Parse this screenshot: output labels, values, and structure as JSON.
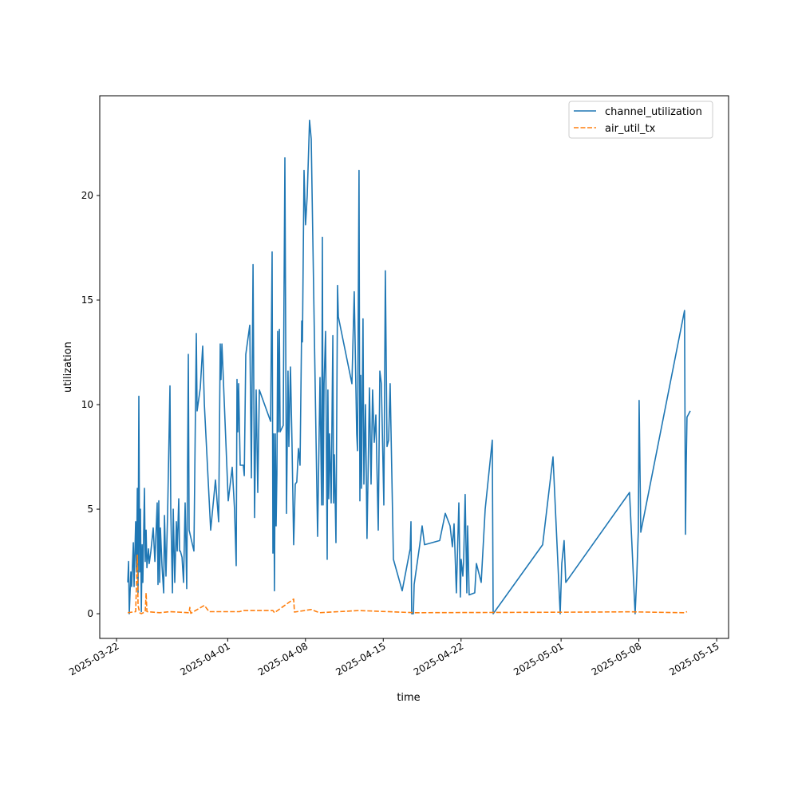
{
  "chart_data": {
    "type": "line",
    "title": "",
    "xlabel": "time",
    "ylabel": "utilization",
    "x_unit": "days since 2025-03-22",
    "xlim": [
      -1.51,
      55.07
    ],
    "ylim": [
      -1.18,
      24.77
    ],
    "grid": false,
    "legend_position": "top-right",
    "x_ticks": [
      {
        "day": 0,
        "label": "2025-03-22"
      },
      {
        "day": 10,
        "label": "2025-04-01"
      },
      {
        "day": 17,
        "label": "2025-04-08"
      },
      {
        "day": 24,
        "label": "2025-04-15"
      },
      {
        "day": 31,
        "label": "2025-04-22"
      },
      {
        "day": 40,
        "label": "2025-05-01"
      },
      {
        "day": 47,
        "label": "2025-05-08"
      },
      {
        "day": 54,
        "label": "2025-05-15"
      }
    ],
    "y_ticks": [
      {
        "value": 0,
        "label": "0"
      },
      {
        "value": 5,
        "label": "5"
      },
      {
        "value": 10,
        "label": "10"
      },
      {
        "value": 15,
        "label": "15"
      },
      {
        "value": 20,
        "label": "20"
      }
    ],
    "series": [
      {
        "name": "channel_utilization",
        "color": "#1f77b4",
        "style": "solid",
        "points": [
          [
            1.01,
            1.5
          ],
          [
            1.08,
            2.5
          ],
          [
            1.15,
            0
          ],
          [
            1.29,
            2
          ],
          [
            1.36,
            1.3
          ],
          [
            1.51,
            3.4
          ],
          [
            1.58,
            1.3
          ],
          [
            1.72,
            4.4
          ],
          [
            1.79,
            2
          ],
          [
            1.87,
            6
          ],
          [
            1.94,
            1
          ],
          [
            2.01,
            10.4
          ],
          [
            2.08,
            2
          ],
          [
            2.15,
            5
          ],
          [
            2.23,
            0.1
          ],
          [
            2.3,
            3.3
          ],
          [
            2.37,
            1.5
          ],
          [
            2.51,
            6
          ],
          [
            2.58,
            2.5
          ],
          [
            2.66,
            4
          ],
          [
            2.73,
            2.2
          ],
          [
            2.87,
            3.1
          ],
          [
            2.94,
            2.4
          ],
          [
            3.09,
            3
          ],
          [
            3.3,
            4.1
          ],
          [
            3.45,
            2.5
          ],
          [
            3.66,
            5.3
          ],
          [
            3.73,
            1.4
          ],
          [
            3.8,
            5.4
          ],
          [
            3.88,
            1.5
          ],
          [
            3.95,
            4.1
          ],
          [
            4.09,
            2.3
          ],
          [
            4.24,
            1
          ],
          [
            4.31,
            4.7
          ],
          [
            4.45,
            1.8
          ],
          [
            4.59,
            4.7
          ],
          [
            4.81,
            10.9
          ],
          [
            4.88,
            5
          ],
          [
            5.03,
            1
          ],
          [
            5.1,
            5
          ],
          [
            5.24,
            1.5
          ],
          [
            5.38,
            4.4
          ],
          [
            5.46,
            3
          ],
          [
            5.6,
            5.5
          ],
          [
            5.67,
            3
          ],
          [
            5.74,
            3
          ],
          [
            5.89,
            2.7
          ],
          [
            6.03,
            1.5
          ],
          [
            6.17,
            5.3
          ],
          [
            6.32,
            1.2
          ],
          [
            6.46,
            12.4
          ],
          [
            6.53,
            4
          ],
          [
            6.75,
            3.5
          ],
          [
            6.96,
            3
          ],
          [
            7.18,
            13.4
          ],
          [
            7.25,
            9.7
          ],
          [
            7.54,
            10.8
          ],
          [
            7.75,
            12.8
          ],
          [
            7.9,
            10
          ],
          [
            8.47,
            4
          ],
          [
            8.9,
            6.4
          ],
          [
            9.19,
            4.4
          ],
          [
            9.33,
            12.9
          ],
          [
            9.4,
            11.2
          ],
          [
            9.48,
            12.9
          ],
          [
            10.05,
            5.4
          ],
          [
            10.41,
            7
          ],
          [
            10.62,
            5
          ],
          [
            10.77,
            2.3
          ],
          [
            10.84,
            11.2
          ],
          [
            10.91,
            8.7
          ],
          [
            10.98,
            11
          ],
          [
            11.13,
            7.1
          ],
          [
            11.41,
            7.1
          ],
          [
            11.49,
            6.6
          ],
          [
            11.63,
            12.4
          ],
          [
            11.99,
            13.8
          ],
          [
            12.13,
            6.5
          ],
          [
            12.28,
            16.7
          ],
          [
            12.42,
            4.6
          ],
          [
            12.56,
            10.7
          ],
          [
            12.71,
            5.8
          ],
          [
            12.85,
            10.7
          ],
          [
            13.86,
            9.2
          ],
          [
            14.0,
            17.3
          ],
          [
            14.07,
            2.9
          ],
          [
            14.14,
            8.6
          ],
          [
            14.21,
            1.1
          ],
          [
            14.29,
            8.6
          ],
          [
            14.36,
            4.2
          ],
          [
            14.43,
            6.7
          ],
          [
            14.5,
            13.5
          ],
          [
            14.57,
            8.7
          ],
          [
            14.65,
            13.6
          ],
          [
            14.72,
            8.7
          ],
          [
            15.0,
            9
          ],
          [
            15.15,
            21.8
          ],
          [
            15.29,
            4.8
          ],
          [
            15.43,
            11.6
          ],
          [
            15.51,
            8
          ],
          [
            15.65,
            11.8
          ],
          [
            15.79,
            8.2
          ],
          [
            15.94,
            3.3
          ],
          [
            16.08,
            6.2
          ],
          [
            16.22,
            6.3
          ],
          [
            16.37,
            7.9
          ],
          [
            16.51,
            7.1
          ],
          [
            16.66,
            14
          ],
          [
            16.73,
            13
          ],
          [
            16.87,
            21.2
          ],
          [
            17.01,
            18.6
          ],
          [
            17.16,
            20
          ],
          [
            17.37,
            23.6
          ],
          [
            17.52,
            22.7
          ],
          [
            18.09,
            3.7
          ],
          [
            18.31,
            11.3
          ],
          [
            18.45,
            5.2
          ],
          [
            18.52,
            18
          ],
          [
            18.59,
            5.2
          ],
          [
            18.67,
            11
          ],
          [
            18.81,
            13.5
          ],
          [
            18.95,
            2.6
          ],
          [
            19.02,
            10.7
          ],
          [
            19.1,
            5.5
          ],
          [
            19.17,
            8.6
          ],
          [
            19.31,
            5.3
          ],
          [
            19.38,
            8.8
          ],
          [
            19.46,
            13.3
          ],
          [
            19.53,
            5.3
          ],
          [
            19.6,
            7.6
          ],
          [
            19.74,
            3.4
          ],
          [
            19.89,
            15.7
          ],
          [
            19.96,
            14.2
          ],
          [
            21.18,
            11
          ],
          [
            21.39,
            15.4
          ],
          [
            21.61,
            8.6
          ],
          [
            21.68,
            7.8
          ],
          [
            21.82,
            21.2
          ],
          [
            21.9,
            5.4
          ],
          [
            21.97,
            11.4
          ],
          [
            22.04,
            6
          ],
          [
            22.18,
            14.1
          ],
          [
            22.26,
            6.2
          ],
          [
            22.4,
            10
          ],
          [
            22.54,
            3.6
          ],
          [
            22.76,
            10.8
          ],
          [
            22.9,
            6.2
          ],
          [
            23.04,
            10.7
          ],
          [
            23.19,
            8.2
          ],
          [
            23.33,
            9.5
          ],
          [
            23.55,
            4
          ],
          [
            23.69,
            11.6
          ],
          [
            23.83,
            11
          ],
          [
            24.05,
            5.2
          ],
          [
            24.19,
            16.4
          ],
          [
            24.34,
            8
          ],
          [
            24.48,
            8.3
          ],
          [
            24.62,
            11
          ],
          [
            24.91,
            2.6
          ],
          [
            25.7,
            1.1
          ],
          [
            26.42,
            3.1
          ],
          [
            26.49,
            4.4
          ],
          [
            26.56,
            0
          ],
          [
            26.71,
            0
          ],
          [
            26.78,
            1.4
          ],
          [
            27.28,
            3.3
          ],
          [
            27.5,
            4.2
          ],
          [
            27.71,
            3.3
          ],
          [
            29.08,
            3.5
          ],
          [
            29.58,
            4.8
          ],
          [
            30.01,
            4.2
          ],
          [
            30.22,
            3.2
          ],
          [
            30.37,
            4.3
          ],
          [
            30.58,
            1
          ],
          [
            30.8,
            5.3
          ],
          [
            30.94,
            0.8
          ],
          [
            31.01,
            2.6
          ],
          [
            31.16,
            1.8
          ],
          [
            31.23,
            2.5
          ],
          [
            31.37,
            5.7
          ],
          [
            31.52,
            1
          ],
          [
            31.59,
            4.2
          ],
          [
            31.73,
            0.9
          ],
          [
            32.23,
            1
          ],
          [
            32.38,
            2.4
          ],
          [
            32.81,
            1.5
          ],
          [
            33.17,
            5
          ],
          [
            33.81,
            8.3
          ],
          [
            33.89,
            0
          ],
          [
            38.34,
            3.3
          ],
          [
            39.27,
            7.5
          ],
          [
            39.92,
            0
          ],
          [
            40.06,
            2.4
          ],
          [
            40.27,
            3.5
          ],
          [
            40.42,
            1.5
          ],
          [
            46.16,
            5.8
          ],
          [
            46.59,
            0.8
          ],
          [
            46.66,
            0
          ],
          [
            46.81,
            1.8
          ],
          [
            46.95,
            4
          ],
          [
            47.02,
            10.2
          ],
          [
            47.17,
            3.9
          ],
          [
            51.11,
            14.5
          ],
          [
            51.19,
            3.8
          ],
          [
            51.26,
            7.1
          ],
          [
            51.33,
            9.4
          ],
          [
            51.62,
            9.7
          ]
        ]
      },
      {
        "name": "air_util_tx",
        "color": "#ff7f0e",
        "style": "dashed",
        "points": [
          [
            1.01,
            0.05
          ],
          [
            1.72,
            0.1
          ],
          [
            1.87,
            2.8
          ],
          [
            1.94,
            0.4
          ],
          [
            2.08,
            0.05
          ],
          [
            2.23,
            0
          ],
          [
            2.58,
            0.1
          ],
          [
            2.66,
            1.0
          ],
          [
            2.73,
            0.1
          ],
          [
            3.88,
            0.05
          ],
          [
            4.81,
            0.1
          ],
          [
            6.53,
            0.05
          ],
          [
            6.6,
            0.3
          ],
          [
            6.68,
            0.02
          ],
          [
            7.9,
            0.4
          ],
          [
            8.33,
            0.1
          ],
          [
            11.06,
            0.1
          ],
          [
            11.41,
            0.15
          ],
          [
            14.07,
            0.15
          ],
          [
            14.21,
            0.05
          ],
          [
            15.94,
            0.7
          ],
          [
            16.01,
            0.08
          ],
          [
            17.52,
            0.2
          ],
          [
            18.24,
            0.05
          ],
          [
            21.82,
            0.15
          ],
          [
            26.85,
            0.05
          ],
          [
            39.77,
            0.07
          ],
          [
            46.23,
            0.09
          ],
          [
            51.11,
            0.05
          ],
          [
            51.33,
            0.1
          ]
        ]
      }
    ]
  }
}
